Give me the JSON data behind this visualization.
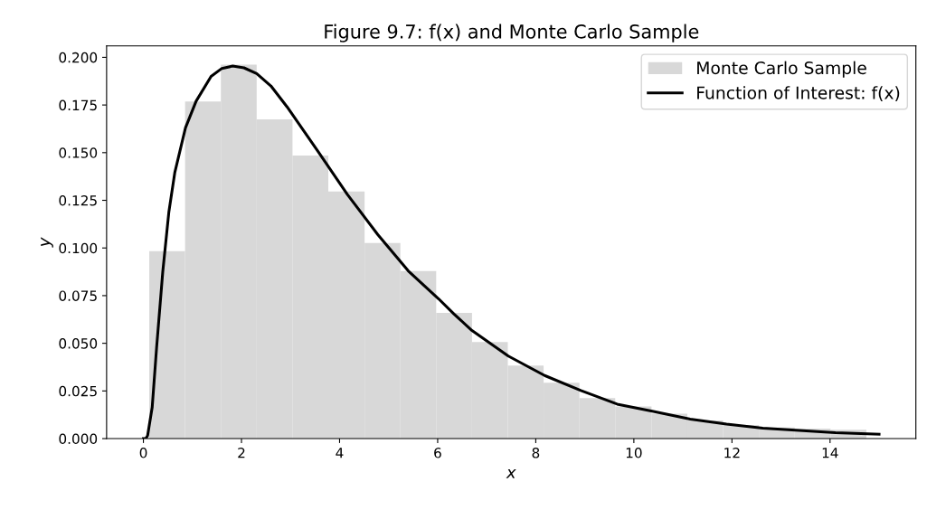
{
  "chart_data": {
    "type": "histogram",
    "title": "Figure 9.7: f(x) and Monte Carlo Sample",
    "xlabel": "x",
    "ylabel": "y",
    "bins": [
      0.12,
      0.85,
      1.58,
      2.31,
      3.04,
      3.77,
      4.51,
      5.24,
      5.97,
      6.7,
      7.43,
      8.16,
      8.89,
      9.62,
      10.36,
      11.09,
      11.82,
      12.55,
      13.28,
      14.01,
      14.74
    ],
    "series": [
      {
        "name": "Monte Carlo Sample",
        "color": "#d8d8d8",
        "values": [
          0.0983,
          0.1768,
          0.1962,
          0.1675,
          0.1485,
          0.1296,
          0.1026,
          0.0879,
          0.0659,
          0.0506,
          0.0383,
          0.0293,
          0.0213,
          0.0169,
          0.0131,
          0.0095,
          0.0071,
          0.0058,
          0.0052,
          0.0047
        ]
      },
      {
        "name": "Function of Interest: f(x)",
        "type": "line",
        "color": "#000000",
        "x": [
          0,
          0.05,
          0.086,
          0.18,
          0.27,
          0.395,
          0.52,
          0.64,
          0.858,
          1.075,
          1.38,
          1.6,
          1.82,
          2.05,
          2.31,
          2.6,
          2.93,
          3.55,
          4.16,
          4.78,
          5.4,
          6.02,
          6.33,
          6.7,
          7.44,
          8.18,
          8.92,
          9.66,
          10.4,
          11.15,
          11.89,
          12.63,
          13.37,
          14.11,
          15.0
        ],
        "values": [
          0,
          0,
          0.0016,
          0.0165,
          0.048,
          0.0875,
          0.119,
          0.1395,
          0.163,
          0.177,
          0.19,
          0.1942,
          0.1954,
          0.1945,
          0.1915,
          0.185,
          0.174,
          0.151,
          0.128,
          0.107,
          0.088,
          0.0733,
          0.0654,
          0.0567,
          0.0433,
          0.0331,
          0.0252,
          0.0181,
          0.0142,
          0.0102,
          0.0076,
          0.0055,
          0.0043,
          0.0031,
          0.0023
        ]
      }
    ],
    "xlim": [
      -0.75,
      15.75
    ],
    "ylim": [
      0,
      0.206
    ],
    "xticks": [
      0,
      2,
      4,
      6,
      8,
      10,
      12,
      14
    ],
    "yticks": [
      {
        "value": 0,
        "label": "0.000"
      },
      {
        "value": 0.025,
        "label": "0.025"
      },
      {
        "value": 0.05,
        "label": "0.050"
      },
      {
        "value": 0.075,
        "label": "0.075"
      },
      {
        "value": 0.1,
        "label": "0.100"
      },
      {
        "value": 0.125,
        "label": "0.125"
      },
      {
        "value": 0.15,
        "label": "0.150"
      },
      {
        "value": 0.175,
        "label": "0.175"
      },
      {
        "value": 0.2,
        "label": "0.200"
      }
    ],
    "legend": "top right",
    "grid": false
  }
}
